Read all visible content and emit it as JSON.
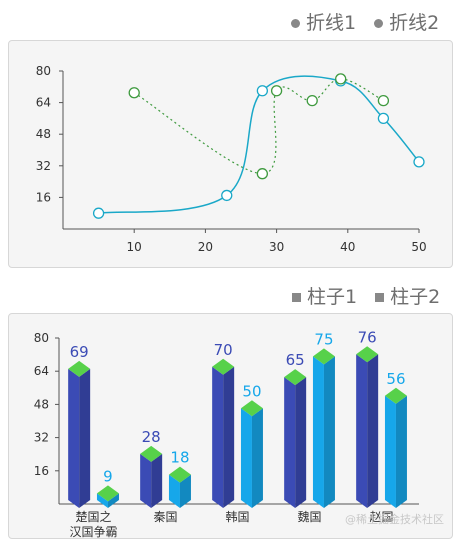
{
  "line_legend": {
    "items": [
      "折线1",
      "折线2"
    ]
  },
  "bar_legend": {
    "items": [
      "柱子1",
      "柱子2"
    ]
  },
  "watermark": "@稀土掘金技术社区",
  "chart_data": [
    {
      "type": "line",
      "xlim": [
        0,
        50
      ],
      "ylim": [
        0,
        80
      ],
      "x_ticks": [
        10,
        20,
        30,
        40,
        50
      ],
      "y_ticks": [
        16,
        32,
        48,
        64,
        80
      ],
      "series": [
        {
          "name": "折线1",
          "color": "#1aa8c8",
          "style": "solid",
          "points": [
            [
              5,
              8
            ],
            [
              23,
              17
            ],
            [
              28,
              70
            ],
            [
              39,
              75
            ],
            [
              45,
              56
            ],
            [
              50,
              34
            ]
          ]
        },
        {
          "name": "折线2",
          "color": "#3f9a3f",
          "style": "dotted",
          "points": [
            [
              10,
              69
            ],
            [
              28,
              28
            ],
            [
              30,
              70
            ],
            [
              35,
              65
            ],
            [
              39,
              76
            ],
            [
              45,
              65
            ]
          ]
        }
      ]
    },
    {
      "type": "bar",
      "categories": [
        "楚国之\n汉国争霸",
        "秦国",
        "韩国",
        "魏国",
        "赵国"
      ],
      "ylim": [
        0,
        80
      ],
      "y_ticks": [
        16,
        32,
        48,
        64,
        80
      ],
      "series": [
        {
          "name": "柱子1",
          "color": "#3b4bb5",
          "values": [
            69,
            28,
            70,
            65,
            76
          ]
        },
        {
          "name": "柱子2",
          "color": "#16a7ea",
          "values": [
            9,
            18,
            50,
            75,
            56
          ]
        }
      ],
      "top_color": "#57d14a"
    }
  ]
}
